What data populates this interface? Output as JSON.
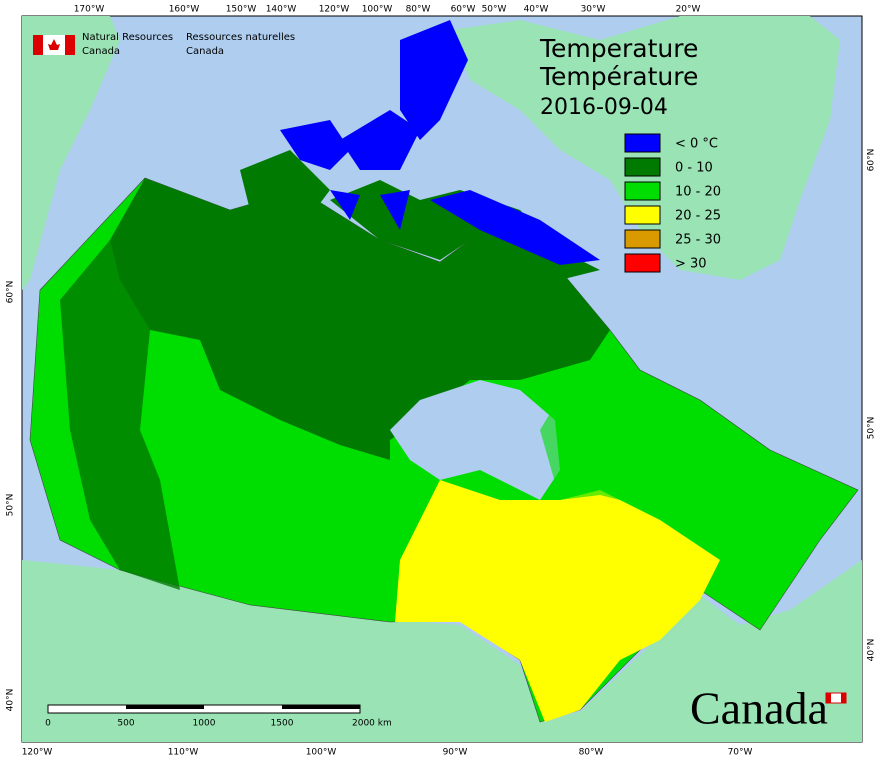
{
  "header": {
    "org_en": [
      "Natural Resources",
      "Canada"
    ],
    "org_fr": [
      "Ressources naturelles",
      "Canada"
    ]
  },
  "title": [
    "Temperature",
    "Température"
  ],
  "date": "2016-09-04",
  "legend": [
    {
      "label": "< 0 °C",
      "color": "#0000ff"
    },
    {
      "label": "0 - 10",
      "color": "#007a00"
    },
    {
      "label": "10 - 20",
      "color": "#00dd00"
    },
    {
      "label": "20 - 25",
      "color": "#ffff00"
    },
    {
      "label": "25 - 30",
      "color": "#d99a00"
    },
    {
      "label": "> 30",
      "color": "#ff0000"
    }
  ],
  "top_labels": [
    "170°W",
    "160°W",
    "150°W",
    "140°W",
    "120°W",
    "100°W",
    "80°W",
    "60°W",
    "50°W",
    "40°W",
    "30°W",
    "20°W"
  ],
  "bottom_labels": [
    "120°W",
    "110°W",
    "100°W",
    "90°W",
    "80°W",
    "70°W"
  ],
  "left_labels": [
    "60°N",
    "50°N",
    "40°N"
  ],
  "right_labels": [
    "60°N",
    "50°N",
    "40°N"
  ],
  "scale_labels": [
    "0",
    "500",
    "1000",
    "1500",
    "2000  km"
  ],
  "wordmark": "Canada"
}
